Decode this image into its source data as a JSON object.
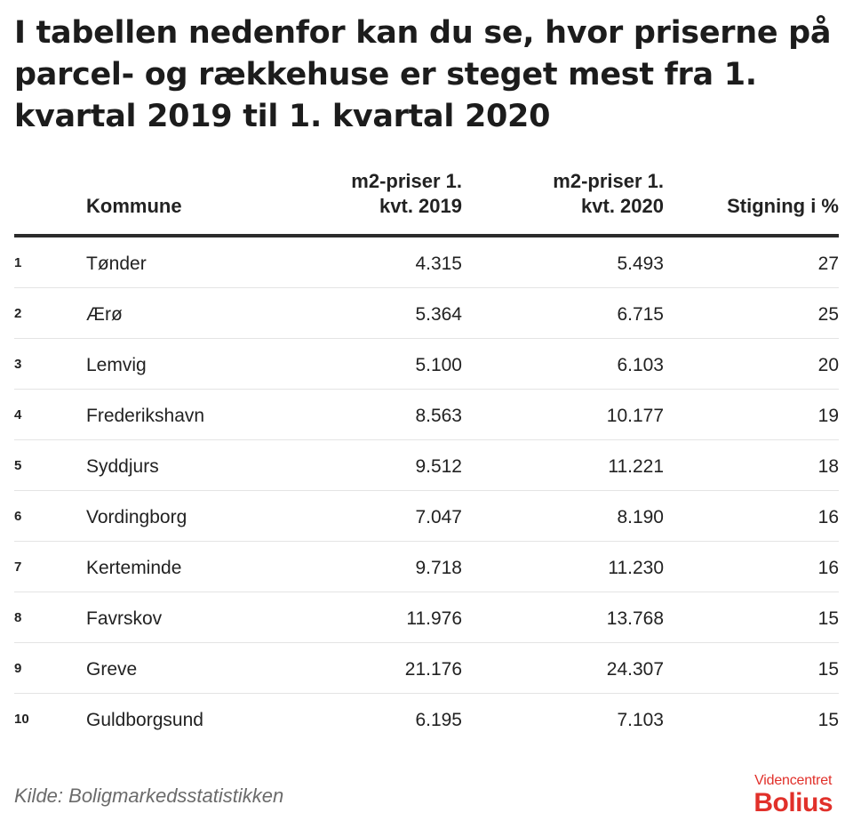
{
  "title": "I tabellen nedenfor kan du se, hvor priserne på parcel- og rækkehuse er steget mest fra 1. kvartal 2019 til 1. kvartal 2020",
  "chart_data": {
    "type": "table",
    "columns": {
      "rank": "",
      "kommune": "Kommune",
      "m2_2019": [
        "m2-priser 1.",
        "kvt. 2019"
      ],
      "m2_2020": [
        "m2-priser 1.",
        "kvt. 2020"
      ],
      "stigning": "Stigning i %"
    },
    "rows": [
      {
        "rank": "1",
        "kommune": "Tønder",
        "m2_2019": "4.315",
        "m2_2020": "5.493",
        "stigning": "27"
      },
      {
        "rank": "2",
        "kommune": "Ærø",
        "m2_2019": "5.364",
        "m2_2020": "6.715",
        "stigning": "25"
      },
      {
        "rank": "3",
        "kommune": "Lemvig",
        "m2_2019": "5.100",
        "m2_2020": "6.103",
        "stigning": "20"
      },
      {
        "rank": "4",
        "kommune": "Frederikshavn",
        "m2_2019": "8.563",
        "m2_2020": "10.177",
        "stigning": "19"
      },
      {
        "rank": "5",
        "kommune": "Syddjurs",
        "m2_2019": "9.512",
        "m2_2020": "11.221",
        "stigning": "18"
      },
      {
        "rank": "6",
        "kommune": "Vordingborg",
        "m2_2019": "7.047",
        "m2_2020": "8.190",
        "stigning": "16"
      },
      {
        "rank": "7",
        "kommune": "Kerteminde",
        "m2_2019": "9.718",
        "m2_2020": "11.230",
        "stigning": "16"
      },
      {
        "rank": "8",
        "kommune": "Favrskov",
        "m2_2019": "11.976",
        "m2_2020": "13.768",
        "stigning": "15"
      },
      {
        "rank": "9",
        "kommune": "Greve",
        "m2_2019": "21.176",
        "m2_2020": "24.307",
        "stigning": "15"
      },
      {
        "rank": "10",
        "kommune": "Guldborgsund",
        "m2_2019": "6.195",
        "m2_2020": "7.103",
        "stigning": "15"
      }
    ]
  },
  "source": "Kilde: Boligmarkedsstatistikken",
  "logo": {
    "line1": "Videncentret",
    "line2": "Bolius"
  },
  "colors": {
    "accent": "#e1302a",
    "text": "#1c1c1c",
    "source": "#6b6b6b",
    "rule": "#2b2b2b",
    "divider": "#e4e4e4"
  }
}
